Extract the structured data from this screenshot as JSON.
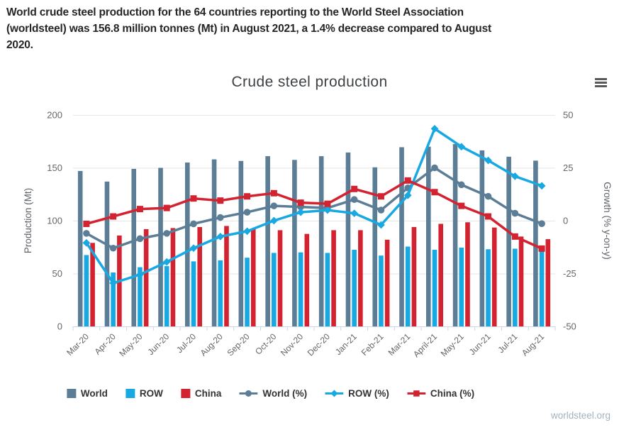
{
  "header": {
    "lines": [
      "World crude steel production for the 64 countries reporting to the World Steel Association",
      "(worldsteel) was 156.8 million tonnes (Mt) in August 2021, a 1.4% decrease compared to August",
      "2020."
    ]
  },
  "menu_icon": "hamburger-menu-icon",
  "footer": {
    "link": "worldsteel.org"
  },
  "chart_data": {
    "type": "bar+line combo",
    "title": "Crude steel production",
    "categories": [
      "Mar-20",
      "Apr-20",
      "May-20",
      "Jun-20",
      "Jul-20",
      "Aug-20",
      "Sep-20",
      "Oct-20",
      "Nov-20",
      "Dec-20",
      "Jan-21",
      "Feb-21",
      "Mar-21",
      "April-21",
      "May-21",
      "Jun-21",
      "Jul-21",
      "Aug-21"
    ],
    "ylabel_left": "Production (Mt)",
    "ylabel_right": "Growth (% y-on-y)",
    "ylim_left": [
      0,
      200
    ],
    "ylim_right": [
      -50,
      50
    ],
    "yticks_left": [
      0,
      50,
      100,
      150,
      200
    ],
    "yticks_right": [
      -50,
      -25,
      0,
      25,
      50
    ],
    "grid": true,
    "legend_position": "bottom",
    "bar_series": [
      {
        "name": "World",
        "axis": "left",
        "color": "#5b7e96",
        "values": [
          147,
          137,
          149,
          150,
          155,
          158,
          156.5,
          161,
          157.5,
          161,
          164.5,
          150.5,
          169.5,
          170,
          172.5,
          166.5,
          160.5,
          156.8
        ]
      },
      {
        "name": "ROW",
        "axis": "left",
        "color": "#18a8e2",
        "values": [
          67.5,
          51,
          56,
          57,
          61.5,
          62.5,
          65,
          69.5,
          70,
          69.5,
          72.5,
          67,
          75.5,
          72.5,
          74.5,
          73,
          73.5,
          73.5
        ]
      },
      {
        "name": "China",
        "axis": "left",
        "color": "#d32230",
        "values": [
          79,
          86,
          92,
          93,
          94,
          95,
          92,
          91,
          87.5,
          91,
          91,
          82,
          94,
          97,
          98.5,
          93.5,
          85,
          82.5
        ]
      }
    ],
    "line_series": [
      {
        "name": "World (%)",
        "axis": "right",
        "color": "#5b7e96",
        "marker": "circle",
        "values": [
          -6,
          -13,
          -8.5,
          -6,
          -1.5,
          1.5,
          4,
          7,
          6.5,
          6,
          10,
          5,
          15.5,
          25,
          17,
          11.5,
          3.5,
          -1.4
        ]
      },
      {
        "name": "ROW (%)",
        "axis": "right",
        "color": "#18a8e2",
        "marker": "diamond",
        "values": [
          -10.5,
          -29.5,
          -25.5,
          -19.5,
          -13,
          -7.5,
          -5,
          0,
          4,
          5,
          3.5,
          -2,
          12,
          43.5,
          35,
          28.5,
          21,
          16.5
        ]
      },
      {
        "name": "China (%)",
        "axis": "right",
        "color": "#d32230",
        "marker": "square",
        "values": [
          -1.5,
          2,
          5.5,
          6,
          10.5,
          9.5,
          11.5,
          13,
          8.5,
          8,
          15,
          11.5,
          19,
          13.5,
          7,
          2,
          -7.5,
          -13.2
        ]
      }
    ],
    "colors": {
      "axis_line": "#ccd6eb",
      "gridline": "#e6e6e6",
      "tick_label": "#666666",
      "title": "#3f4346"
    }
  }
}
